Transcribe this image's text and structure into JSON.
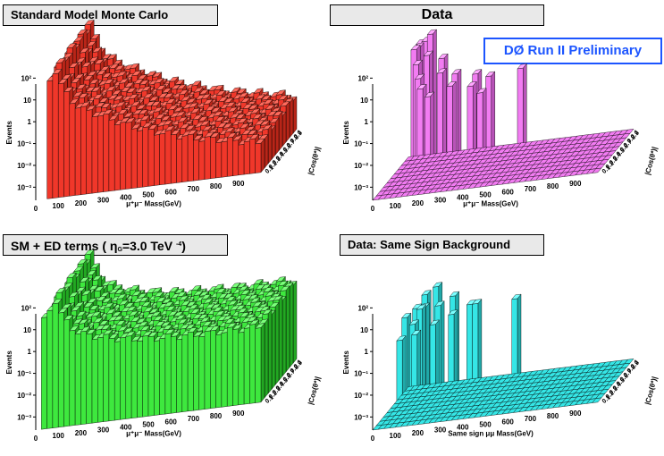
{
  "panels": [
    {
      "title": "Standard Model Monte Carlo",
      "xlabel": "μ⁺μ⁻ Mass(GeV)",
      "ylabel": "Events",
      "zlabel": "|Cos(θ*)|",
      "colors": {
        "face": "#f0372a",
        "side": "#b82518",
        "top": "#ff6a5c"
      }
    },
    {
      "title": "Data",
      "badge": "DØ Run II Preliminary",
      "xlabel": "μ⁺μ⁻ Mass(GeV)",
      "ylabel": "Events",
      "zlabel": "|Cos(θ*)|",
      "colors": {
        "face": "#f27cf2",
        "side": "#b953b9",
        "top": "#ffa6ff"
      }
    },
    {
      "title_parts": {
        "pre": "SM + ED terms ( ",
        "eta": "η",
        "sub": "G",
        "mid": "=3.0 TeV ",
        "sup": "-4",
        "post": ")"
      },
      "xlabel": "μ⁺μ⁻ Mass(GeV)",
      "ylabel": "Events",
      "zlabel": "|Cos(θ*)|",
      "colors": {
        "face": "#3ee83e",
        "side": "#22a822",
        "top": "#7aff7a"
      }
    },
    {
      "title": "Data: Same Sign Background",
      "xlabel": "Same sign  μμ  Mass(GeV)",
      "ylabel": "Events",
      "zlabel": "|Cos(θ*)|",
      "colors": {
        "face": "#35e6e6",
        "side": "#20a8a8",
        "top": "#7affff"
      }
    }
  ],
  "chart_data": [
    {
      "type": "bar",
      "series_name": "Standard Model Monte Carlo",
      "x_ticks": [
        "0",
        "100",
        "200",
        "300",
        "400",
        "500",
        "600",
        "700",
        "800",
        "900"
      ],
      "y_ticks": [
        "10⁻³",
        "10⁻²",
        "10⁻¹",
        "1",
        "10",
        "10²"
      ],
      "z_ticks": [
        "0.1",
        "0.2",
        "0.3",
        "0.4",
        "0.5",
        "0.6",
        "0.7",
        "0.8",
        "0.9",
        "1"
      ],
      "xlim": [
        0,
        1000
      ],
      "zlim": [
        0,
        1
      ],
      "log_y": true,
      "mass_bin_edges_gev": [
        50,
        1000
      ],
      "bins_x": 40,
      "bins_z": 10,
      "grid_profile_log10": {
        "mass_gev": [
          50,
          60,
          70,
          80,
          91,
          100,
          150,
          200,
          300,
          400,
          500,
          600,
          700,
          800,
          900,
          1000
        ],
        "log10_events": [
          1.6,
          2.0,
          2.3,
          2.4,
          2.5,
          2.0,
          1.1,
          0.6,
          0.1,
          -0.4,
          -0.8,
          -1.1,
          -1.4,
          -1.6,
          -1.8,
          -2.0
        ]
      }
    },
    {
      "type": "bar",
      "series_name": "Data",
      "x_ticks": [
        "0",
        "100",
        "200",
        "300",
        "400",
        "500",
        "600",
        "700",
        "800",
        "900"
      ],
      "y_ticks": [
        "10⁻³",
        "10⁻²",
        "10⁻¹",
        "1",
        "10",
        "10²"
      ],
      "z_ticks": [
        "0.1",
        "0.2",
        "0.3",
        "0.4",
        "0.5",
        "0.6",
        "0.7",
        "0.8",
        "0.9",
        "1"
      ],
      "xlim": [
        0,
        1000
      ],
      "zlim": [
        0,
        1
      ],
      "log_y": true,
      "bins_x": 40,
      "bins_z": 10,
      "nonzero_bins": [
        {
          "mass_gev": 60,
          "cos": 0.95,
          "events": 50
        },
        {
          "mass_gev": 70,
          "cos": 0.85,
          "events": 40
        },
        {
          "mass_gev": 80,
          "cos": 0.95,
          "events": 60
        },
        {
          "mass_gev": 90,
          "cos": 0.75,
          "events": 80
        },
        {
          "mass_gev": 95,
          "cos": 0.65,
          "events": 100
        },
        {
          "mass_gev": 100,
          "cos": 0.95,
          "events": 120
        },
        {
          "mass_gev": 110,
          "cos": 0.55,
          "events": 30
        },
        {
          "mass_gev": 120,
          "cos": 0.85,
          "events": 20
        },
        {
          "mass_gev": 140,
          "cos": 0.45,
          "events": 10
        },
        {
          "mass_gev": 150,
          "cos": 0.95,
          "events": 8
        },
        {
          "mass_gev": 160,
          "cos": 0.35,
          "events": 5
        },
        {
          "mass_gev": 180,
          "cos": 0.75,
          "events": 4
        },
        {
          "mass_gev": 200,
          "cos": 0.25,
          "events": 3
        },
        {
          "mass_gev": 230,
          "cos": 0.85,
          "events": 2
        },
        {
          "mass_gev": 260,
          "cos": 0.55,
          "events": 2
        },
        {
          "mass_gev": 300,
          "cos": 0.95,
          "events": 1
        },
        {
          "mass_gev": 340,
          "cos": 0.65,
          "events": 1
        },
        {
          "mass_gev": 380,
          "cos": 0.85,
          "events": 1
        },
        {
          "mass_gev": 420,
          "cos": 0.45,
          "events": 1
        },
        {
          "mass_gev": 500,
          "cos": 0.95,
          "events": 1
        }
      ]
    },
    {
      "type": "bar",
      "series_name": "SM + ED terms (ηG=3.0 TeV-4)",
      "x_ticks": [
        "0",
        "100",
        "200",
        "300",
        "400",
        "500",
        "600",
        "700",
        "800",
        "900"
      ],
      "y_ticks": [
        "10⁻³",
        "10⁻²",
        "10⁻¹",
        "1",
        "10",
        "10²"
      ],
      "z_ticks": [
        "0.1",
        "0.2",
        "0.3",
        "0.4",
        "0.5",
        "0.6",
        "0.7",
        "0.8",
        "0.9",
        "1"
      ],
      "xlim": [
        0,
        1000
      ],
      "zlim": [
        0,
        1
      ],
      "log_y": true,
      "bins_x": 40,
      "bins_z": 10,
      "grid_profile_log10": {
        "mass_gev": [
          50,
          60,
          70,
          80,
          91,
          100,
          150,
          200,
          300,
          400,
          500,
          600,
          700,
          800,
          900,
          1000
        ],
        "log10_events": [
          1.6,
          2.0,
          2.3,
          2.4,
          2.5,
          2.0,
          1.2,
          0.8,
          0.5,
          0.3,
          0.2,
          0.15,
          0.1,
          0.1,
          0.1,
          0.1
        ]
      }
    },
    {
      "type": "bar",
      "series_name": "Data: Same Sign Background",
      "x_ticks": [
        "0",
        "100",
        "200",
        "300",
        "400",
        "500",
        "600",
        "700",
        "800",
        "900"
      ],
      "y_ticks": [
        "10⁻³",
        "10⁻²",
        "10⁻¹",
        "1",
        "10",
        "10²"
      ],
      "z_ticks": [
        "0.1",
        "0.2",
        "0.3",
        "0.4",
        "0.5",
        "0.6",
        "0.7",
        "0.8",
        "0.9",
        "1"
      ],
      "xlim": [
        0,
        1000
      ],
      "zlim": [
        0,
        1
      ],
      "log_y": true,
      "bins_x": 40,
      "bins_z": 10,
      "nonzero_bins": [
        {
          "mass_gev": 60,
          "cos": 0.55,
          "events": 3
        },
        {
          "mass_gev": 70,
          "cos": 0.85,
          "events": 2
        },
        {
          "mass_gev": 80,
          "cos": 0.25,
          "events": 1
        },
        {
          "mass_gev": 90,
          "cos": 0.95,
          "events": 5
        },
        {
          "mass_gev": 100,
          "cos": 0.65,
          "events": 4
        },
        {
          "mass_gev": 110,
          "cos": 0.45,
          "events": 2
        },
        {
          "mass_gev": 120,
          "cos": 0.75,
          "events": 3
        },
        {
          "mass_gev": 130,
          "cos": 0.95,
          "events": 10
        },
        {
          "mass_gev": 140,
          "cos": 0.35,
          "events": 1
        },
        {
          "mass_gev": 160,
          "cos": 0.85,
          "events": 2
        },
        {
          "mass_gev": 180,
          "cos": 0.55,
          "events": 1
        },
        {
          "mass_gev": 200,
          "cos": 0.95,
          "events": 3
        },
        {
          "mass_gev": 240,
          "cos": 0.75,
          "events": 1
        },
        {
          "mass_gev": 280,
          "cos": 0.95,
          "events": 1
        },
        {
          "mass_gev": 320,
          "cos": 0.95,
          "events": 1
        },
        {
          "mass_gev": 480,
          "cos": 0.95,
          "events": 1
        }
      ]
    }
  ]
}
